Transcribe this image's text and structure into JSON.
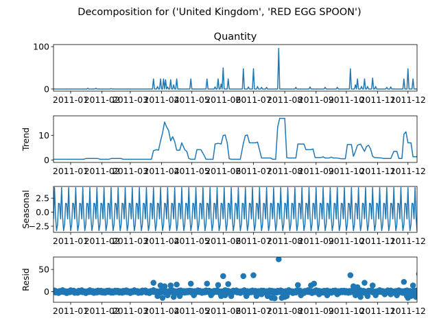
{
  "figure": {
    "suptitle": "Decomposition for ('United Kingdom', 'RED  EGG  SPOON')"
  },
  "chart_data": [
    {
      "type": "line",
      "title": "Quantity",
      "ylabel": "",
      "xlim": [
        "2010-12-15",
        "2011-12-10"
      ],
      "ylim": [
        -5,
        105
      ],
      "yticks": [
        0,
        100
      ],
      "xticks": [
        "2011-01",
        "2011-02",
        "2011-03",
        "2011-04",
        "2011-05",
        "2011-06",
        "2011-07",
        "2011-08",
        "2011-09",
        "2011-10",
        "2011-11",
        "2011-12"
      ],
      "color": "#1f77b4",
      "base": 0,
      "spikes": [
        [
          "2011-01-18",
          2
        ],
        [
          "2011-01-26",
          2
        ],
        [
          "2011-02-10",
          1
        ],
        [
          "2011-03-24",
          24
        ],
        [
          "2011-03-28",
          6
        ],
        [
          "2011-03-31",
          24
        ],
        [
          "2011-04-03",
          24
        ],
        [
          "2011-04-05",
          22
        ],
        [
          "2011-04-07",
          5
        ],
        [
          "2011-04-10",
          22
        ],
        [
          "2011-04-13",
          10
        ],
        [
          "2011-04-16",
          24
        ],
        [
          "2011-04-30",
          24
        ],
        [
          "2011-05-16",
          24
        ],
        [
          "2011-05-24",
          5
        ],
        [
          "2011-05-27",
          24
        ],
        [
          "2011-05-30",
          12
        ],
        [
          "2011-06-01",
          50
        ],
        [
          "2011-06-06",
          24
        ],
        [
          "2011-06-21",
          48
        ],
        [
          "2011-06-26",
          5
        ],
        [
          "2011-07-01",
          48
        ],
        [
          "2011-07-05",
          6
        ],
        [
          "2011-07-09",
          4
        ],
        [
          "2011-07-14",
          4
        ],
        [
          "2011-07-26",
          96
        ],
        [
          "2011-08-12",
          4
        ],
        [
          "2011-08-26",
          5
        ],
        [
          "2011-09-10",
          4
        ],
        [
          "2011-09-22",
          4
        ],
        [
          "2011-10-05",
          48
        ],
        [
          "2011-10-10",
          10
        ],
        [
          "2011-10-12",
          24
        ],
        [
          "2011-10-16",
          6
        ],
        [
          "2011-10-19",
          24
        ],
        [
          "2011-10-22",
          6
        ],
        [
          "2011-10-27",
          26
        ],
        [
          "2011-10-30",
          6
        ],
        [
          "2011-11-10",
          4
        ],
        [
          "2011-11-14",
          5
        ],
        [
          "2011-11-27",
          24
        ],
        [
          "2011-12-01",
          48
        ],
        [
          "2011-12-06",
          24
        ],
        [
          "2011-12-12",
          48
        ],
        [
          "2011-12-15",
          4
        ],
        [
          "2011-12-19",
          6
        ]
      ]
    },
    {
      "type": "line",
      "title": "",
      "ylabel": "Trend",
      "xlim": [
        "2010-12-15",
        "2011-12-10"
      ],
      "ylim": [
        -1,
        18
      ],
      "yticks": [
        0,
        10
      ],
      "xticks": [
        "2011-01",
        "2011-02",
        "2011-03",
        "2011-04",
        "2011-05",
        "2011-06",
        "2011-07",
        "2011-08",
        "2011-09",
        "2011-10",
        "2011-11",
        "2011-12"
      ],
      "color": "#1f77b4",
      "points": [
        [
          "2010-12-15",
          0.3
        ],
        [
          "2011-01-14",
          0.3
        ],
        [
          "2011-01-16",
          0.6
        ],
        [
          "2011-01-28",
          0.6
        ],
        [
          "2011-01-30",
          0.3
        ],
        [
          "2011-02-08",
          0.3
        ],
        [
          "2011-02-10",
          0.6
        ],
        [
          "2011-02-20",
          0.6
        ],
        [
          "2011-02-22",
          0.3
        ],
        [
          "2011-03-22",
          0.3
        ],
        [
          "2011-03-24",
          3.8
        ],
        [
          "2011-03-27",
          4.2
        ],
        [
          "2011-03-29",
          4.0
        ],
        [
          "2011-03-31",
          7.8
        ],
        [
          "2011-04-02",
          11.0
        ],
        [
          "2011-04-04",
          15.5
        ],
        [
          "2011-04-06",
          13.5
        ],
        [
          "2011-04-08",
          12.0
        ],
        [
          "2011-04-10",
          7.8
        ],
        [
          "2011-04-12",
          9.5
        ],
        [
          "2011-04-14",
          7.5
        ],
        [
          "2011-04-16",
          4.0
        ],
        [
          "2011-04-19",
          4.0
        ],
        [
          "2011-04-21",
          7.0
        ],
        [
          "2011-04-24",
          4.2
        ],
        [
          "2011-04-26",
          3.5
        ],
        [
          "2011-04-28",
          0.6
        ],
        [
          "2011-04-30",
          0.3
        ],
        [
          "2011-05-04",
          0.3
        ],
        [
          "2011-05-06",
          4.2
        ],
        [
          "2011-05-10",
          4.2
        ],
        [
          "2011-05-13",
          2.0
        ],
        [
          "2011-05-15",
          0.3
        ],
        [
          "2011-05-22",
          0.3
        ],
        [
          "2011-05-24",
          6.5
        ],
        [
          "2011-05-27",
          6.8
        ],
        [
          "2011-05-30",
          6.5
        ],
        [
          "2011-06-01",
          10.0
        ],
        [
          "2011-06-03",
          10.2
        ],
        [
          "2011-06-05",
          7.0
        ],
        [
          "2011-06-07",
          0.5
        ],
        [
          "2011-06-09",
          0.3
        ],
        [
          "2011-06-18",
          0.3
        ],
        [
          "2011-06-21",
          6.8
        ],
        [
          "2011-06-23",
          10.0
        ],
        [
          "2011-06-25",
          10.2
        ],
        [
          "2011-06-27",
          7.0
        ],
        [
          "2011-07-03",
          7.0
        ],
        [
          "2011-07-05",
          7.3
        ],
        [
          "2011-07-07",
          4.2
        ],
        [
          "2011-07-09",
          0.8
        ],
        [
          "2011-07-18",
          0.8
        ],
        [
          "2011-07-20",
          0.3
        ],
        [
          "2011-07-23",
          0.3
        ],
        [
          "2011-07-25",
          13.5
        ],
        [
          "2011-07-27",
          17.0
        ],
        [
          "2011-08-01",
          17.0
        ],
        [
          "2011-08-03",
          1.0
        ],
        [
          "2011-08-05",
          0.8
        ],
        [
          "2011-08-12",
          0.8
        ],
        [
          "2011-08-14",
          6.5
        ],
        [
          "2011-08-20",
          6.5
        ],
        [
          "2011-08-22",
          4.2
        ],
        [
          "2011-08-27",
          4.2
        ],
        [
          "2011-08-29",
          4.5
        ],
        [
          "2011-08-31",
          1.0
        ],
        [
          "2011-09-06",
          1.0
        ],
        [
          "2011-09-08",
          1.3
        ],
        [
          "2011-09-10",
          0.8
        ],
        [
          "2011-09-14",
          0.8
        ],
        [
          "2011-09-16",
          1.2
        ],
        [
          "2011-09-18",
          0.8
        ],
        [
          "2011-09-22",
          0.8
        ],
        [
          "2011-09-26",
          0.5
        ],
        [
          "2011-09-30",
          0.5
        ],
        [
          "2011-10-02",
          6.3
        ],
        [
          "2011-10-06",
          6.3
        ],
        [
          "2011-10-08",
          1.5
        ],
        [
          "2011-10-10",
          3.5
        ],
        [
          "2011-10-12",
          6.0
        ],
        [
          "2011-10-15",
          6.5
        ],
        [
          "2011-10-17",
          5.0
        ],
        [
          "2011-10-19",
          3.5
        ],
        [
          "2011-10-21",
          5.5
        ],
        [
          "2011-10-23",
          6.0
        ],
        [
          "2011-10-25",
          4.5
        ],
        [
          "2011-10-27",
          1.5
        ],
        [
          "2011-10-29",
          1.0
        ],
        [
          "2011-11-05",
          0.8
        ],
        [
          "2011-11-07",
          0.6
        ],
        [
          "2011-11-14",
          0.6
        ],
        [
          "2011-11-17",
          3.5
        ],
        [
          "2011-11-20",
          3.5
        ],
        [
          "2011-11-22",
          0.6
        ],
        [
          "2011-11-25",
          0.6
        ],
        [
          "2011-11-27",
          10.5
        ],
        [
          "2011-11-29",
          11.5
        ],
        [
          "2011-12-01",
          7.0
        ],
        [
          "2011-12-04",
          7.0
        ],
        [
          "2011-12-06",
          1.3
        ],
        [
          "2011-12-10",
          1.3
        ],
        [
          "2011-12-12",
          14.0
        ],
        [
          "2011-12-15",
          13.8
        ],
        [
          "2011-12-17",
          7.0
        ],
        [
          "2011-12-19",
          0.5
        ],
        [
          "2011-12-21",
          0.4
        ]
      ]
    },
    {
      "type": "line",
      "title": "",
      "ylabel": "Seasonal",
      "xlim": [
        "2010-12-15",
        "2011-12-10"
      ],
      "ylim": [
        -3.6,
        4.6
      ],
      "yticks": [
        -2.5,
        0.0,
        2.5
      ],
      "xticks": [
        "2011-01",
        "2011-02",
        "2011-03",
        "2011-04",
        "2011-05",
        "2011-06",
        "2011-07",
        "2011-08",
        "2011-09",
        "2011-10",
        "2011-11",
        "2011-12"
      ],
      "color": "#1f77b4",
      "period_days": 7,
      "start": "2010-12-15",
      "end": "2011-12-22",
      "pattern": [
        -1.2,
        4.4,
        -0.8,
        -3.3,
        -2.2,
        1.6,
        1.5
      ]
    },
    {
      "type": "scatter",
      "title": "",
      "ylabel": "Resid",
      "xlim": [
        "2010-12-15",
        "2011-12-10"
      ],
      "ylim": [
        -24,
        78
      ],
      "yticks": [
        0,
        50
      ],
      "xticks": [
        "2011-01",
        "2011-02",
        "2011-03",
        "2011-04",
        "2011-05",
        "2011-06",
        "2011-07",
        "2011-08",
        "2011-09",
        "2011-10",
        "2011-11",
        "2011-12"
      ],
      "color": "#1f77b4",
      "baseline_start": "2010-12-15",
      "baseline_end": "2011-12-22",
      "outliers": [
        [
          "2011-03-24",
          20
        ],
        [
          "2011-03-28",
          -10
        ],
        [
          "2011-03-31",
          14
        ],
        [
          "2011-04-02",
          -14
        ],
        [
          "2011-04-04",
          12
        ],
        [
          "2011-04-07",
          -8
        ],
        [
          "2011-04-10",
          14
        ],
        [
          "2011-04-13",
          -12
        ],
        [
          "2011-04-16",
          16
        ],
        [
          "2011-04-19",
          -10
        ],
        [
          "2011-04-30",
          18
        ],
        [
          "2011-05-03",
          -8
        ],
        [
          "2011-05-16",
          18
        ],
        [
          "2011-05-20",
          -8
        ],
        [
          "2011-05-27",
          15
        ],
        [
          "2011-05-30",
          -10
        ],
        [
          "2011-06-01",
          35
        ],
        [
          "2011-06-03",
          -8
        ],
        [
          "2011-06-06",
          17
        ],
        [
          "2011-06-09",
          -10
        ],
        [
          "2011-06-21",
          35
        ],
        [
          "2011-06-24",
          -10
        ],
        [
          "2011-07-01",
          37
        ],
        [
          "2011-07-04",
          -10
        ],
        [
          "2011-07-09",
          -6
        ],
        [
          "2011-07-15",
          -10
        ],
        [
          "2011-07-19",
          -14
        ],
        [
          "2011-07-22",
          -15
        ],
        [
          "2011-07-26",
          73
        ],
        [
          "2011-07-29",
          -14
        ],
        [
          "2011-08-01",
          -12
        ],
        [
          "2011-08-03",
          -10
        ],
        [
          "2011-08-14",
          15
        ],
        [
          "2011-08-17",
          -8
        ],
        [
          "2011-08-27",
          14
        ],
        [
          "2011-08-30",
          18
        ],
        [
          "2011-09-04",
          -6
        ],
        [
          "2011-09-12",
          -8
        ],
        [
          "2011-09-22",
          -6
        ],
        [
          "2011-10-05",
          37
        ],
        [
          "2011-10-08",
          12
        ],
        [
          "2011-10-10",
          -8
        ],
        [
          "2011-10-12",
          10
        ],
        [
          "2011-10-15",
          -12
        ],
        [
          "2011-10-19",
          20
        ],
        [
          "2011-10-22",
          -10
        ],
        [
          "2011-10-27",
          14
        ],
        [
          "2011-10-30",
          -8
        ],
        [
          "2011-11-08",
          -6
        ],
        [
          "2011-11-14",
          -6
        ],
        [
          "2011-11-20",
          -8
        ],
        [
          "2011-11-27",
          22
        ],
        [
          "2011-11-30",
          -10
        ],
        [
          "2011-12-01",
          -14
        ],
        [
          "2011-12-04",
          -10
        ],
        [
          "2011-12-06",
          14
        ],
        [
          "2011-12-09",
          -12
        ],
        [
          "2011-12-12",
          40
        ],
        [
          "2011-12-15",
          -14
        ],
        [
          "2011-12-17",
          -18
        ],
        [
          "2011-12-19",
          32
        ],
        [
          "2011-12-21",
          -8
        ]
      ]
    }
  ]
}
